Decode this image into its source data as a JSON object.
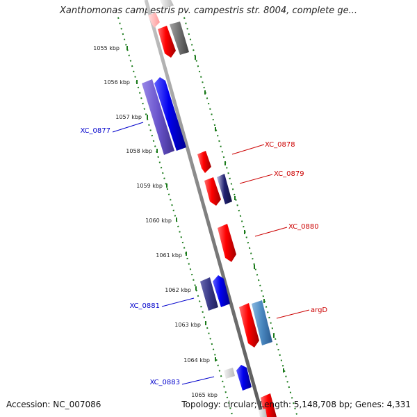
{
  "header": {
    "title": "Xanthomonas campestris pv. campestris str. 8004, complete ge..."
  },
  "footer": {
    "accession": "Accession: NC_007086",
    "topology": "Topology: circular; Length: 5,148,708 bp; Genes: 4,331"
  },
  "map": {
    "kbp_labels": [
      "1055 kbp",
      "1056 kbp",
      "1057 kbp",
      "1058 kbp",
      "1059 kbp",
      "1060 kbp",
      "1061 kbp",
      "1062 kbp",
      "1063 kbp",
      "1064 kbp",
      "1065 kbp"
    ],
    "gene_labels": [
      {
        "text": "XC_0877",
        "color": "#0000cc"
      },
      {
        "text": "XC_0878",
        "color": "#cc0000"
      },
      {
        "text": "XC_0879",
        "color": "#cc0000"
      },
      {
        "text": "XC_0880",
        "color": "#cc0000"
      },
      {
        "text": "XC_0881",
        "color": "#0000cc"
      },
      {
        "text": "argD",
        "color": "#cc0000"
      },
      {
        "text": "XC_0883",
        "color": "#0000cc"
      }
    ],
    "colors": {
      "forward_strand": "#e00000",
      "reverse_strand": "#0000dd",
      "backbone": "#8a8a8a",
      "ticks": "#1a7a1a"
    }
  }
}
